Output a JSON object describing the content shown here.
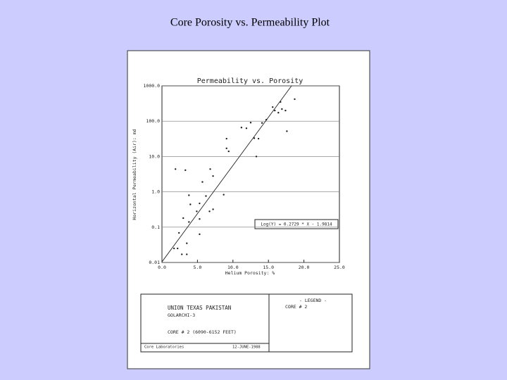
{
  "slide": {
    "title": "Core Porosity vs. Permeability Plot"
  },
  "chart_data": {
    "type": "scatter",
    "title": "Permeability vs. Porosity",
    "x_label": "Helium Porosity: %",
    "y_label": "Horizontal Permeability (Air): md",
    "log_y": true,
    "grid": true,
    "xlim": [
      0,
      25
    ],
    "ylim": [
      0.01,
      1000
    ],
    "xticks": [
      {
        "value": 0,
        "label": "0.0"
      },
      {
        "value": 5,
        "label": "5.0"
      },
      {
        "value": 10,
        "label": "10.0"
      },
      {
        "value": 15,
        "label": "15.0"
      },
      {
        "value": 20,
        "label": "20.0"
      },
      {
        "value": 25,
        "label": "25.0"
      }
    ],
    "yticks": [
      0.01,
      0.1,
      {
        "value": 1,
        "label": "1.0"
      },
      {
        "value": 10,
        "label": "10.0"
      },
      {
        "value": 100,
        "label": "100.0"
      },
      {
        "value": 1000,
        "label": "1000.0"
      }
    ],
    "series": [
      {
        "name": "CORE # 2",
        "color": "#222222",
        "x": [
          1.9,
          3.3,
          5.7,
          6.8,
          7.2,
          9.1,
          9.1,
          9.4,
          8.7,
          11.2,
          11.9,
          12.5,
          13.0,
          13.6,
          13.3,
          14.1,
          14.7,
          15.6,
          15.9,
          16.4,
          16.7,
          16.9,
          17.4,
          17.6,
          18.7,
          3.8,
          4.0,
          4.9,
          5.3,
          5.3,
          6.2,
          6.7,
          7.2,
          3.8,
          3.0,
          2.4,
          3.5,
          2.2,
          2.8,
          3.5,
          5.3,
          1.7
        ],
        "values": [
          4.4,
          4.1,
          1.9,
          4.4,
          2.8,
          32,
          17,
          14,
          0.83,
          66,
          63,
          91,
          33,
          32,
          10,
          89,
          110,
          250,
          200,
          174,
          350,
          220,
          200,
          52,
          420,
          0.8,
          0.44,
          0.28,
          0.47,
          0.17,
          0.76,
          0.28,
          0.32,
          0.14,
          0.18,
          0.069,
          0.035,
          0.025,
          0.017,
          0.017,
          0.063,
          0.025
        ]
      }
    ],
    "fit": {
      "label": "Log(Y) = 0.2729 * X - 1.9814",
      "slope": 0.2729,
      "intercept": -1.9814
    },
    "info_box": {
      "company": "UNION TEXAS PAKISTAN",
      "well": "GOLARCHI-3",
      "core": "CORE # 2 (6090-6152 FEET)",
      "lab": "Core Laboratories",
      "date": "12-JUNE-1988",
      "legend_title": "- LEGEND -"
    }
  }
}
